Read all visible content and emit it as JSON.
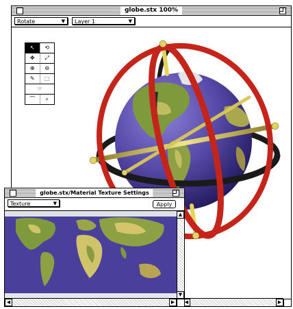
{
  "main_window": {
    "title": "globe.stx 100%",
    "popup_left": "Rotate",
    "popup_right": "Layer 1"
  },
  "tools": [
    [
      "↖",
      "⟲"
    ],
    [
      "✥",
      "⤢"
    ],
    [
      "⊕",
      "⊖"
    ],
    [
      "✎",
      "⬚"
    ],
    [
      "☞"
    ],
    [
      "⌒",
      "⌕"
    ]
  ],
  "map_window": {
    "title": "globe.stx/Material Texture Settings",
    "popup": "Texture",
    "apply_label": "Apply"
  },
  "colors": {
    "ring_red": "#c4241a",
    "ring_black": "#1a1a1a",
    "axis_yellow": "#e6d35a",
    "ocean": "#5548a6",
    "land_green": "#7f9a3c",
    "land_yellow": "#cfc46a"
  }
}
